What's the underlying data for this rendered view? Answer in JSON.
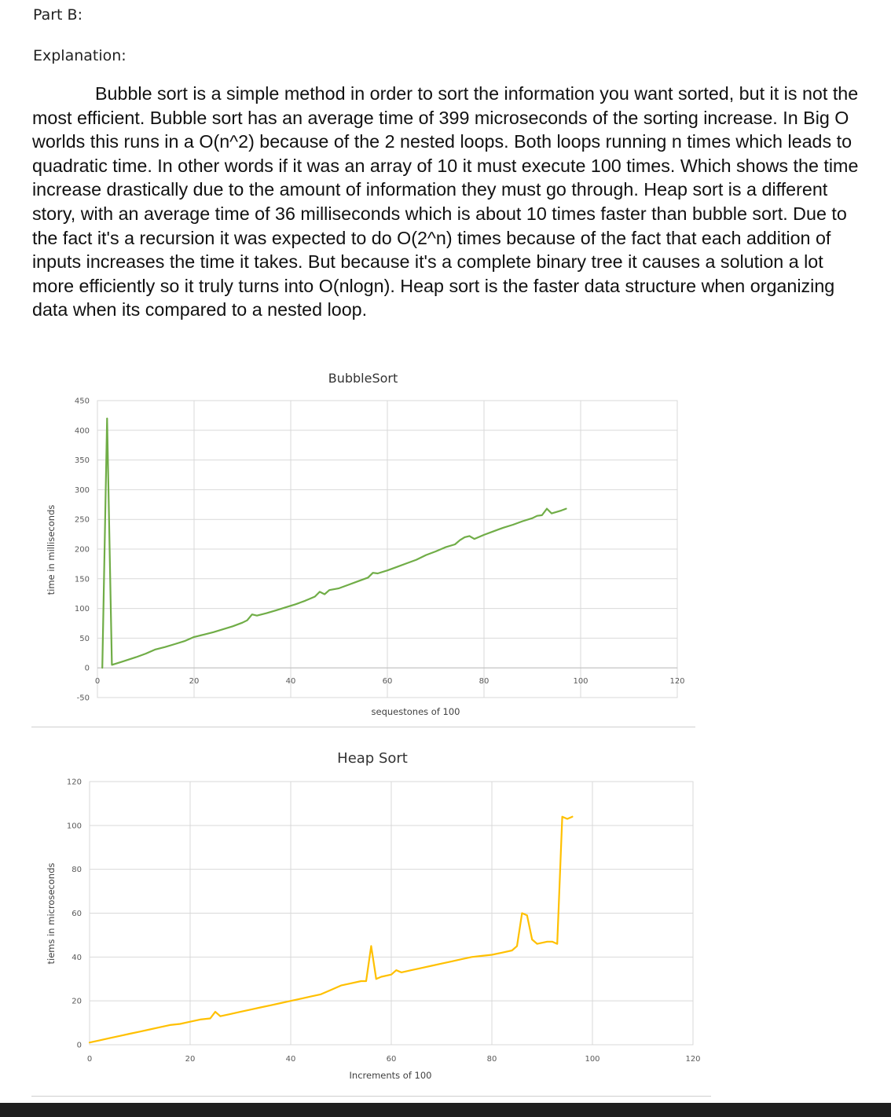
{
  "document": {
    "part_heading": "Part B:",
    "explanation_heading": "Explanation:",
    "paragraph": "Bubble sort is a simple method in order to sort the information you want sorted, but it is not the most efficient. Bubble sort has an average time of 399 microseconds of the sorting increase. In Big O worlds this runs in a O(n^2) because of the 2 nested loops. Both loops running n times which leads to quadratic time. In other words if it was an array of 10 it must execute 100 times. Which shows the time increase drastically due to the amount of information they must go through. Heap sort is a different story, with an average time of 36 milliseconds which is about 10 times faster than bubble sort. Due to the fact it's a recursion it was expected to do O(2^n) times because of the fact that each addition of inputs increases the time it takes. But because it's a complete binary tree it causes a solution a lot more efficiently so it truly turns into O(nlogn). Heap sort is the faster data structure when organizing data when its compared to a nested loop."
  },
  "chart_data": [
    {
      "type": "line",
      "title": "BubbleSort",
      "xlabel": "sequestones of 100",
      "ylabel": "time in milliseconds",
      "xlim": [
        0,
        120
      ],
      "ylim": [
        -50,
        450
      ],
      "x_ticks": [
        "0",
        "20",
        "40",
        "60",
        "80",
        "100",
        "120"
      ],
      "y_ticks": [
        "-50",
        "0",
        "50",
        "100",
        "150",
        "200",
        "250",
        "300",
        "350",
        "400",
        "450"
      ],
      "color": "#70ad47",
      "series": [
        {
          "name": "BubbleSort",
          "points": [
            [
              1,
              0
            ],
            [
              2,
              420
            ],
            [
              3,
              5
            ],
            [
              5,
              10
            ],
            [
              8,
              18
            ],
            [
              10,
              24
            ],
            [
              12,
              31
            ],
            [
              14,
              35
            ],
            [
              16,
              40
            ],
            [
              18,
              45
            ],
            [
              20,
              52
            ],
            [
              22,
              56
            ],
            [
              24,
              60
            ],
            [
              26,
              65
            ],
            [
              28,
              70
            ],
            [
              30,
              76
            ],
            [
              31,
              80
            ],
            [
              32,
              90
            ],
            [
              33,
              88
            ],
            [
              35,
              92
            ],
            [
              37,
              97
            ],
            [
              39,
              102
            ],
            [
              41,
              107
            ],
            [
              43,
              113
            ],
            [
              45,
              120
            ],
            [
              46,
              128
            ],
            [
              47,
              124
            ],
            [
              48,
              131
            ],
            [
              50,
              134
            ],
            [
              52,
              140
            ],
            [
              54,
              146
            ],
            [
              56,
              152
            ],
            [
              57,
              160
            ],
            [
              58,
              159
            ],
            [
              60,
              164
            ],
            [
              62,
              170
            ],
            [
              64,
              176
            ],
            [
              66,
              182
            ],
            [
              68,
              190
            ],
            [
              70,
              196
            ],
            [
              72,
              203
            ],
            [
              74,
              208
            ],
            [
              75,
              215
            ],
            [
              76,
              220
            ],
            [
              77,
              222
            ],
            [
              78,
              217
            ],
            [
              80,
              224
            ],
            [
              82,
              230
            ],
            [
              84,
              236
            ],
            [
              86,
              241
            ],
            [
              88,
              247
            ],
            [
              90,
              252
            ],
            [
              91,
              256
            ],
            [
              92,
              257
            ],
            [
              93,
              268
            ],
            [
              94,
              260
            ],
            [
              96,
              265
            ],
            [
              97,
              268
            ]
          ]
        }
      ]
    },
    {
      "type": "line",
      "title": "Heap Sort",
      "xlabel": "Increments of 100",
      "ylabel": "tiems in microseconds",
      "xlim": [
        0,
        120
      ],
      "ylim": [
        0,
        120
      ],
      "x_ticks": [
        "0",
        "20",
        "40",
        "60",
        "80",
        "100",
        "120"
      ],
      "y_ticks": [
        "0",
        "20",
        "40",
        "60",
        "80",
        "100",
        "120"
      ],
      "color": "#ffc000",
      "series": [
        {
          "name": "Heap Sort",
          "points": [
            [
              0,
              1
            ],
            [
              2,
              2
            ],
            [
              4,
              3
            ],
            [
              6,
              4
            ],
            [
              8,
              5
            ],
            [
              10,
              6
            ],
            [
              12,
              7
            ],
            [
              14,
              8
            ],
            [
              16,
              9
            ],
            [
              18,
              9.5
            ],
            [
              20,
              10.5
            ],
            [
              22,
              11.5
            ],
            [
              24,
              12
            ],
            [
              25,
              15
            ],
            [
              26,
              13
            ],
            [
              28,
              14
            ],
            [
              30,
              15
            ],
            [
              32,
              16
            ],
            [
              34,
              17
            ],
            [
              36,
              18
            ],
            [
              38,
              19
            ],
            [
              40,
              20
            ],
            [
              42,
              21
            ],
            [
              44,
              22
            ],
            [
              46,
              23
            ],
            [
              48,
              25
            ],
            [
              50,
              27
            ],
            [
              52,
              28
            ],
            [
              54,
              29
            ],
            [
              55,
              29
            ],
            [
              56,
              45
            ],
            [
              57,
              30
            ],
            [
              58,
              31
            ],
            [
              60,
              32
            ],
            [
              61,
              34
            ],
            [
              62,
              33
            ],
            [
              64,
              34
            ],
            [
              66,
              35
            ],
            [
              68,
              36
            ],
            [
              70,
              37
            ],
            [
              72,
              38
            ],
            [
              74,
              39
            ],
            [
              76,
              40
            ],
            [
              78,
              40.5
            ],
            [
              80,
              41
            ],
            [
              82,
              42
            ],
            [
              84,
              43
            ],
            [
              85,
              45
            ],
            [
              86,
              60
            ],
            [
              87,
              59
            ],
            [
              88,
              48
            ],
            [
              89,
              46
            ],
            [
              90,
              46.5
            ],
            [
              91,
              47
            ],
            [
              92,
              47
            ],
            [
              93,
              46
            ],
            [
              94,
              104
            ],
            [
              95,
              103
            ],
            [
              96,
              104
            ]
          ]
        }
      ]
    }
  ]
}
